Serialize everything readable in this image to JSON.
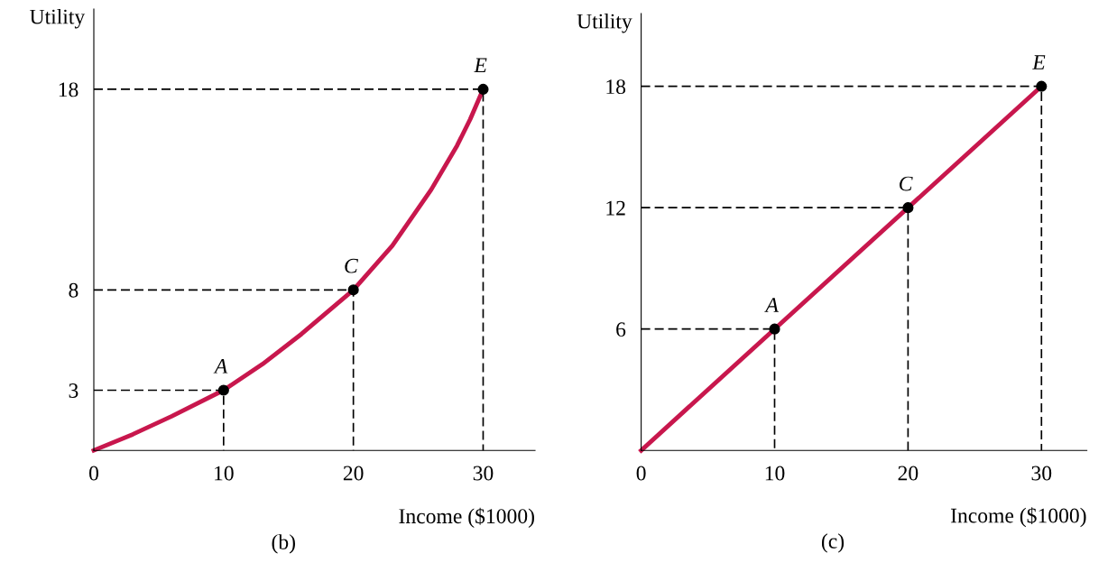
{
  "chart_data": [
    {
      "type": "line",
      "xlabel": "Income ($1000)",
      "ylabel": "Utility",
      "xlim": [
        0,
        34
      ],
      "ylim": [
        0,
        22
      ],
      "xticks": [
        0,
        10,
        20,
        30
      ],
      "yticks": [
        3,
        8,
        18
      ],
      "series": [
        {
          "color": "#c8174d",
          "line_style": "solid",
          "marker": "none",
          "x": [
            0,
            3,
            6,
            10,
            13,
            16,
            20,
            23,
            26,
            28,
            29,
            30
          ],
          "values": [
            0,
            0.8,
            1.7,
            3,
            4.3,
            5.8,
            8,
            10.2,
            13,
            15.2,
            16.5,
            18
          ]
        },
        {
          "type": "line",
          "color": "#000000",
          "line_style": "dashed",
          "marker": "none",
          "x": [
            0,
            10,
            10
          ],
          "values": [
            3,
            3,
            0
          ]
        },
        {
          "type": "line",
          "color": "#000000",
          "line_style": "dashed",
          "marker": "none",
          "x": [
            0,
            20,
            20
          ],
          "values": [
            8,
            8,
            0
          ]
        },
        {
          "type": "line",
          "color": "#000000",
          "line_style": "dashed",
          "marker": "none",
          "x": [
            0,
            30,
            30
          ],
          "values": [
            18,
            18,
            0
          ]
        },
        {
          "type": "scatter",
          "color": "#000000",
          "marker": "circle",
          "x": [
            10,
            20,
            30
          ],
          "values": [
            3,
            8,
            18
          ]
        }
      ],
      "annotations": [
        {
          "text": "A",
          "x": 10,
          "y": 3
        },
        {
          "text": "C",
          "x": 20,
          "y": 8
        },
        {
          "text": "E",
          "x": 30,
          "y": 18
        },
        "(b)"
      ]
    },
    {
      "type": "line",
      "xlabel": "Income ($1000)",
      "ylabel": "Utility",
      "xlim": [
        0,
        33.4
      ],
      "ylim": [
        0,
        21.6
      ],
      "xticks": [
        0,
        10,
        20,
        30
      ],
      "yticks": [
        6,
        12,
        18
      ],
      "series": [
        {
          "color": "#c8174d",
          "line_style": "solid",
          "marker": "none",
          "x": [
            0,
            30
          ],
          "values": [
            0,
            18
          ]
        },
        {
          "type": "line",
          "color": "#000000",
          "line_style": "dashed",
          "marker": "none",
          "x": [
            0,
            10,
            10
          ],
          "values": [
            6,
            6,
            0
          ]
        },
        {
          "type": "line",
          "color": "#000000",
          "line_style": "dashed",
          "marker": "none",
          "x": [
            0,
            20,
            20
          ],
          "values": [
            12,
            12,
            0
          ]
        },
        {
          "type": "line",
          "color": "#000000",
          "line_style": "dashed",
          "marker": "none",
          "x": [
            0,
            30,
            30
          ],
          "values": [
            18,
            18,
            0
          ]
        },
        {
          "type": "scatter",
          "color": "#000000",
          "marker": "circle",
          "x": [
            10,
            20,
            30
          ],
          "values": [
            6,
            12,
            18
          ]
        }
      ],
      "annotations": [
        {
          "text": "A",
          "x": 10,
          "y": 6
        },
        {
          "text": "C",
          "x": 20,
          "y": 12
        },
        {
          "text": "E",
          "x": 30,
          "y": 18
        },
        "(c)"
      ]
    }
  ]
}
